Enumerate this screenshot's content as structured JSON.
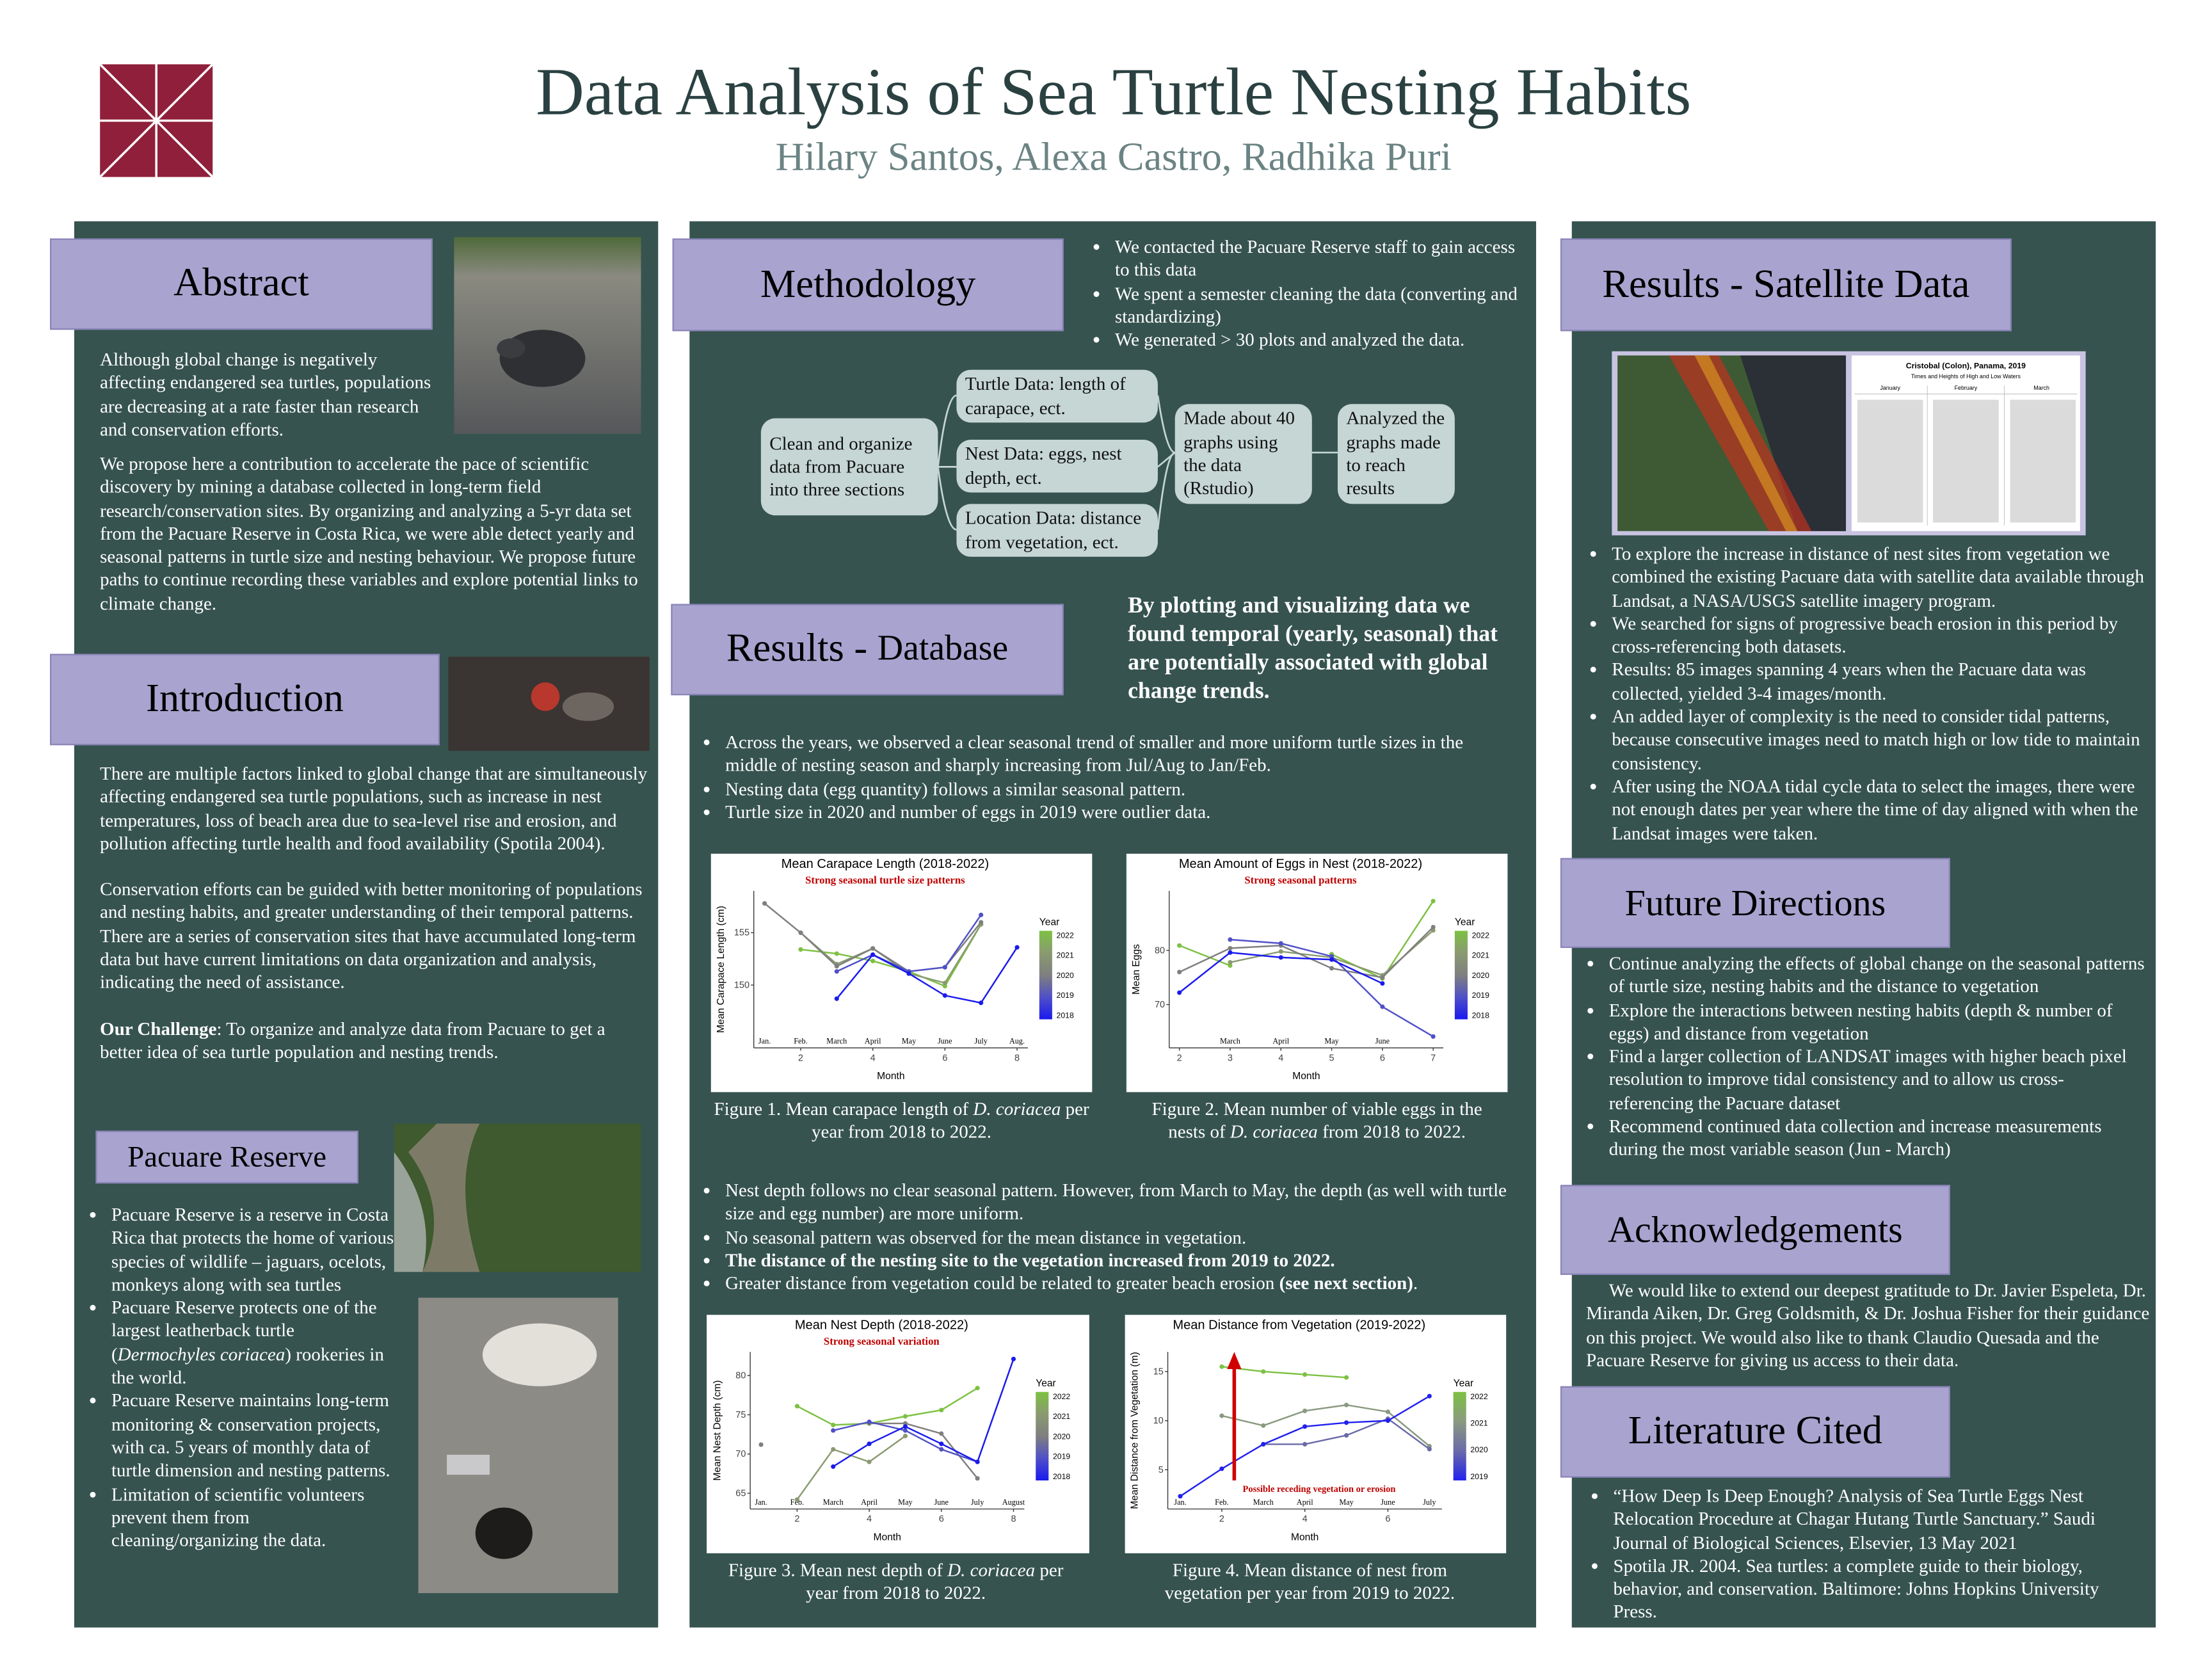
{
  "header": {
    "title": "Data Analysis of Sea Turtle Nesting Habits",
    "authors": "Hilary Santos, Alexa Castro, Radhika Puri"
  },
  "abstract": {
    "heading": "Abstract",
    "paragraphs": [
      "Although global change is negatively affecting endangered sea turtles, populations are decreasing at a rate faster than research and conservation efforts.",
      "We propose here a contribution to accelerate the pace of scientific discovery by mining a database collected in long-term field research/conservation sites. By organizing and analyzing a 5-yr data set from the Pacuare Reserve in Costa Rica, we were able detect yearly and seasonal patterns in turtle size and nesting behaviour. We propose future paths to continue recording these variables and explore potential links to climate change."
    ]
  },
  "introduction": {
    "heading": "Introduction",
    "paragraphs": [
      "There are multiple factors linked to global change that are simultaneously affecting endangered sea turtle populations, such as increase in nest temperatures, loss of beach area due to sea-level rise and erosion, and pollution affecting turtle health and food availability (Spotila 2004).",
      "Conservation efforts can be guided with better monitoring of populations and nesting habits, and greater understanding of their temporal patterns. There are a series of conservation sites that have accumulated long-term data but have current limitations on data organization and analysis, indicating the need of assistance."
    ],
    "challenge": [
      "Our Challenge",
      ": To organize and analyze data from Pacuare to get a better idea of sea turtle population and nesting trends."
    ]
  },
  "pacuare": {
    "heading": "Pacuare Reserve",
    "bullets": [
      "Pacuare Reserve is a reserve in Costa Rica that protects the home of various species of wildlife – jaguars, ocelots, monkeys along with sea turtles",
      [
        "Pacuare Reserve protects one of the largest leatherback turtle (",
        "Dermochyles coriacea",
        ") rookeries in the world."
      ],
      "Pacuare Reserve maintains long-term monitoring & conservation projects, with ca. 5 years of monthly data of turtle dimension and nesting patterns.",
      "Limitation of scientific volunteers prevent them from cleaning/organizing the data."
    ]
  },
  "methodology": {
    "heading": "Methodology",
    "bullets": [
      "We contacted the Pacuare Reserve staff to gain access to this data",
      "We spent a semester cleaning the data (converting and standardizing)",
      "We generated > 30 plots and analyzed the data."
    ],
    "flow": {
      "start": "Clean and organize data from Pacuare into three sections",
      "branches": [
        "Turtle Data: length of carapace, ect.",
        "Nest Data: eggs, nest depth, ect.",
        "Location Data: distance from vegetation, ect."
      ],
      "made": "Made about 40 graphs using the data (Rstudio)",
      "analyzed": "Analyzed the graphs made to reach results"
    }
  },
  "results_database": {
    "heading": [
      "Results - ",
      "Database"
    ],
    "highlight": "By plotting and visualizing data we found temporal (yearly, seasonal) that are potentially associated with global change trends.",
    "bullets_top": [
      "Across the years, we observed a clear seasonal trend of smaller and more uniform turtle sizes in the middle of nesting season and sharply increasing from Jul/Aug to Jan/Feb.",
      " Nesting data (egg quantity)  follows a similar seasonal pattern.",
      "Turtle size in 2020 and number of eggs in 2019 were outlier data."
    ],
    "bullets_bottom": [
      "Nest depth follows no clear seasonal pattern. However, from March to May, the depth (as well with turtle size and egg number) are more uniform.",
      "No seasonal pattern was observed for the mean distance in vegetation.",
      "The distance of the nesting site to the vegetation increased from 2019 to 2022.",
      [
        "Greater distance from vegetation could be related to greater beach erosion ",
        "(see next section)",
        "."
      ]
    ],
    "figures": [
      {
        "caption": [
          "Figure 1. Mean carapace length of ",
          "D. coriacea",
          " per year from 2018 to 2022."
        ],
        "chart": {
          "type": "line",
          "title": "Mean Carapace Length (2018-2022)",
          "subtitle": "Strong seasonal turtle size patterns",
          "x_label": "Month",
          "y_label": "Mean Carapace Length (cm)",
          "legend_title": "Year",
          "x": [
            1,
            2,
            3,
            4,
            5,
            6,
            7,
            8
          ],
          "xlim": [
            0.7,
            8.3
          ],
          "xticks": [
            2,
            4,
            6,
            8
          ],
          "ylim": [
            144,
            159
          ],
          "yticks": [
            150,
            155
          ],
          "month_labels": [
            {
              "value": 1,
              "label": "Jan."
            },
            {
              "value": 2,
              "label": "Feb."
            },
            {
              "value": 3,
              "label": "March"
            },
            {
              "value": 4,
              "label": "April"
            },
            {
              "value": 5,
              "label": "May"
            },
            {
              "value": 6,
              "label": "June"
            },
            {
              "value": 7,
              "label": "July"
            },
            {
              "value": 8,
              "label": "Aug."
            }
          ],
          "series": [
            {
              "name": "2022",
              "color": "#7dc142",
              "values": [
                null,
                153.4,
                153,
                152.3,
                151.3,
                149.9,
                155.8,
                null
              ]
            },
            {
              "name": "2021",
              "color": "#8a9a70",
              "values": [
                null,
                155,
                152,
                153.5,
                151.1,
                150.2,
                155.8,
                null
              ]
            },
            {
              "name": "2020",
              "color": "#7f7f7f",
              "values": [
                157.8,
                155,
                151.8,
                153.5,
                151.3,
                151.7,
                156,
                null
              ]
            },
            {
              "name": "2019",
              "color": "#5050c8",
              "values": [
                null,
                null,
                151.3,
                152.9,
                151.3,
                151.7,
                156.7,
                null
              ]
            },
            {
              "name": "2018",
              "color": "#1a1aee",
              "values": [
                null,
                null,
                148.7,
                152.9,
                151.1,
                149,
                148.3,
                153.6
              ]
            }
          ]
        }
      },
      {
        "caption": [
          "Figure 2. Mean number of viable eggs in the nests of ",
          "D. coriacea",
          " from 2018 to 2022."
        ],
        "chart": {
          "type": "line",
          "title": "Mean Amount of Eggs in Nest (2018-2022)",
          "subtitle": "Strong seasonal patterns",
          "x_label": "Month",
          "y_label": "Mean Eggs",
          "legend_title": "Year",
          "x": [
            2,
            3,
            4,
            5,
            6,
            7
          ],
          "xlim": [
            1.8,
            7.2
          ],
          "xticks": [
            2,
            3,
            4,
            5,
            6,
            7
          ],
          "ylim": [
            62,
            91
          ],
          "yticks": [
            70,
            80
          ],
          "month_labels": [
            {
              "value": 3,
              "label": "March"
            },
            {
              "value": 4,
              "label": "April"
            },
            {
              "value": 5,
              "label": "May"
            },
            {
              "value": 6,
              "label": "June"
            }
          ],
          "series": [
            {
              "name": "2022",
              "color": "#7dc142",
              "values": [
                80.9,
                77.2,
                null,
                79.3,
                74.8,
                89.1
              ]
            },
            {
              "name": "2021",
              "color": "#8a9a70",
              "values": [
                null,
                77.8,
                79.8,
                78.7,
                75.4,
                83.7
              ]
            },
            {
              "name": "2020",
              "color": "#7f7f7f",
              "values": [
                76,
                80.4,
                80.9,
                76.7,
                75,
                84.3
              ]
            },
            {
              "name": "2019",
              "color": "#5050c8",
              "values": [
                null,
                82,
                81.3,
                78.9,
                69.6,
                64.1
              ]
            },
            {
              "name": "2018",
              "color": "#1a1aee",
              "values": [
                72.2,
                79.6,
                78.7,
                78.3,
                73.9,
                null
              ]
            }
          ]
        }
      },
      {
        "caption": [
          "Figure 3. Mean nest depth of ",
          "D. coriacea",
          " per year from 2018 to 2022."
        ],
        "chart": {
          "type": "line",
          "title": "Mean Nest Depth (2018-2022)",
          "subtitle": "Strong seasonal variation",
          "x_label": "Month",
          "y_label": "Mean Nest Depth (cm)",
          "legend_title": "Year",
          "x": [
            1,
            2,
            3,
            4,
            5,
            6,
            7,
            8
          ],
          "xlim": [
            0.7,
            8.3
          ],
          "xticks": [
            2,
            4,
            6,
            8
          ],
          "ylim": [
            63,
            83
          ],
          "yticks": [
            65,
            70,
            75,
            80
          ],
          "month_labels": [
            {
              "value": 1,
              "label": "Jan."
            },
            {
              "value": 2,
              "label": "Feb."
            },
            {
              "value": 3,
              "label": "March"
            },
            {
              "value": 4,
              "label": "April"
            },
            {
              "value": 5,
              "label": "May"
            },
            {
              "value": 6,
              "label": "June"
            },
            {
              "value": 7,
              "label": "July"
            },
            {
              "value": 8,
              "label": "August"
            }
          ],
          "series": [
            {
              "name": "2022",
              "color": "#7dc142",
              "values": [
                null,
                76.1,
                73.7,
                73.9,
                74.8,
                75.6,
                78.4,
                null
              ]
            },
            {
              "name": "2021",
              "color": "#8a9a70",
              "values": [
                null,
                64.2,
                70.6,
                69,
                72.3,
                null,
                null,
                null
              ]
            },
            {
              "name": "2020",
              "color": "#7f7f7f",
              "values": [
                71.2,
                null,
                null,
                73.9,
                73.9,
                72.6,
                66.9,
                null
              ]
            },
            {
              "name": "2019",
              "color": "#5050c8",
              "values": [
                null,
                null,
                73,
                74.1,
                73,
                70.6,
                69,
                null
              ]
            },
            {
              "name": "2018",
              "color": "#1a1aee",
              "values": [
                null,
                null,
                68.4,
                71.3,
                73.5,
                71.3,
                69,
                82.1
              ]
            }
          ]
        }
      },
      {
        "caption": [
          "Figure 4. Mean distance of nest from vegetation per year  from 2019 to 2022."
        ],
        "chart": {
          "type": "line",
          "title": "Mean Distance from Vegetation (2019-2022)",
          "annotation": "Possible receding vegetation or erosion",
          "x_label": "Month",
          "y_label": "Mean Distance from Vegetation (m)",
          "legend_title": "Year",
          "x": [
            1,
            2,
            3,
            4,
            5,
            6,
            7
          ],
          "xlim": [
            0.7,
            7.3
          ],
          "xticks": [
            2,
            4,
            6
          ],
          "ylim": [
            1,
            17
          ],
          "yticks": [
            5,
            10,
            15
          ],
          "month_labels": [
            {
              "value": 1,
              "label": "Jan."
            },
            {
              "value": 2,
              "label": "Feb."
            },
            {
              "value": 3,
              "label": "March"
            },
            {
              "value": 4,
              "label": "April"
            },
            {
              "value": 5,
              "label": "May"
            },
            {
              "value": 6,
              "label": "June"
            },
            {
              "value": 7,
              "label": "July"
            }
          ],
          "series": [
            {
              "name": "2022",
              "color": "#7dc142",
              "values": [
                null,
                15.5,
                15,
                14.7,
                14.4,
                null,
                null
              ]
            },
            {
              "name": "2021",
              "color": "#8a9a80",
              "values": [
                null,
                10.5,
                9.5,
                11,
                11.6,
                10.9,
                7.4
              ]
            },
            {
              "name": "2020",
              "color": "#6a6aa8",
              "values": [
                null,
                null,
                7.6,
                7.6,
                8.5,
                10.2,
                7.1
              ]
            },
            {
              "name": "2019",
              "color": "#2222ee",
              "values": [
                2.3,
                5.1,
                7.6,
                9.4,
                9.8,
                10,
                12.5
              ]
            }
          ]
        }
      }
    ]
  },
  "results_satellite": {
    "heading": "Results - Satellite Data",
    "image_text": {
      "title": "Cristobal (Colon), Panama, 2019",
      "subtitle": "Times and Heights of High and Low Waters",
      "months": [
        "January",
        "February",
        "March"
      ]
    },
    "bullets": [
      "To explore the increase in distance of nest sites from vegetation we combined the existing Pacuare data with satellite data available through Landsat, a NASA/USGS satellite imagery program.",
      "We searched for signs of progressive beach erosion in this period by cross-referencing both datasets.",
      "Results: 85 images spanning 4 years when the Pacuare data was collected, yielded 3-4 images/month.",
      "An added layer of complexity is the need to consider tidal patterns, because consecutive images need to match high or low tide to maintain consistency.",
      "After using the NOAA tidal cycle data to select the images, there were not enough dates per year where the time of day aligned with when the Landsat images were taken."
    ]
  },
  "future_directions": {
    "heading": "Future Directions",
    "bullets": [
      "Continue analyzing the effects of global change on the seasonal patterns of turtle size, nesting habits and the distance to vegetation",
      "Explore the interactions between nesting habits (depth & number of eggs) and distance from vegetation",
      "Find a larger collection of LANDSAT images with higher beach pixel resolution to improve tidal consistency and to allow us cross-referencing the Pacuare dataset",
      "Recommend continued data collection and increase measurements during the most variable season (Jun - March)"
    ]
  },
  "acknowledgements": {
    "heading": "Acknowledgements",
    "text": "We would like to extend our deepest gratitude to Dr. Javier Espeleta, Dr. Miranda Aiken, Dr. Greg Goldsmith, & Dr. Joshua Fisher for their guidance on this project. We would also like to thank Claudio Quesada and the Pacuare Reserve for giving us access to their data."
  },
  "literature": {
    "heading": "Literature Cited",
    "bullets": [
      "“How Deep Is Deep Enough? Analysis of Sea Turtle Eggs Nest Relocation Procedure at Chagar Hutang Turtle Sanctuary.” Saudi Journal of Biological Sciences, Elsevier, 13 May 2021",
      "Spotila JR. 2004. Sea turtles: a complete guide to their biology, behavior, and conservation. Baltimore: Johns Hopkins University Press."
    ]
  }
}
